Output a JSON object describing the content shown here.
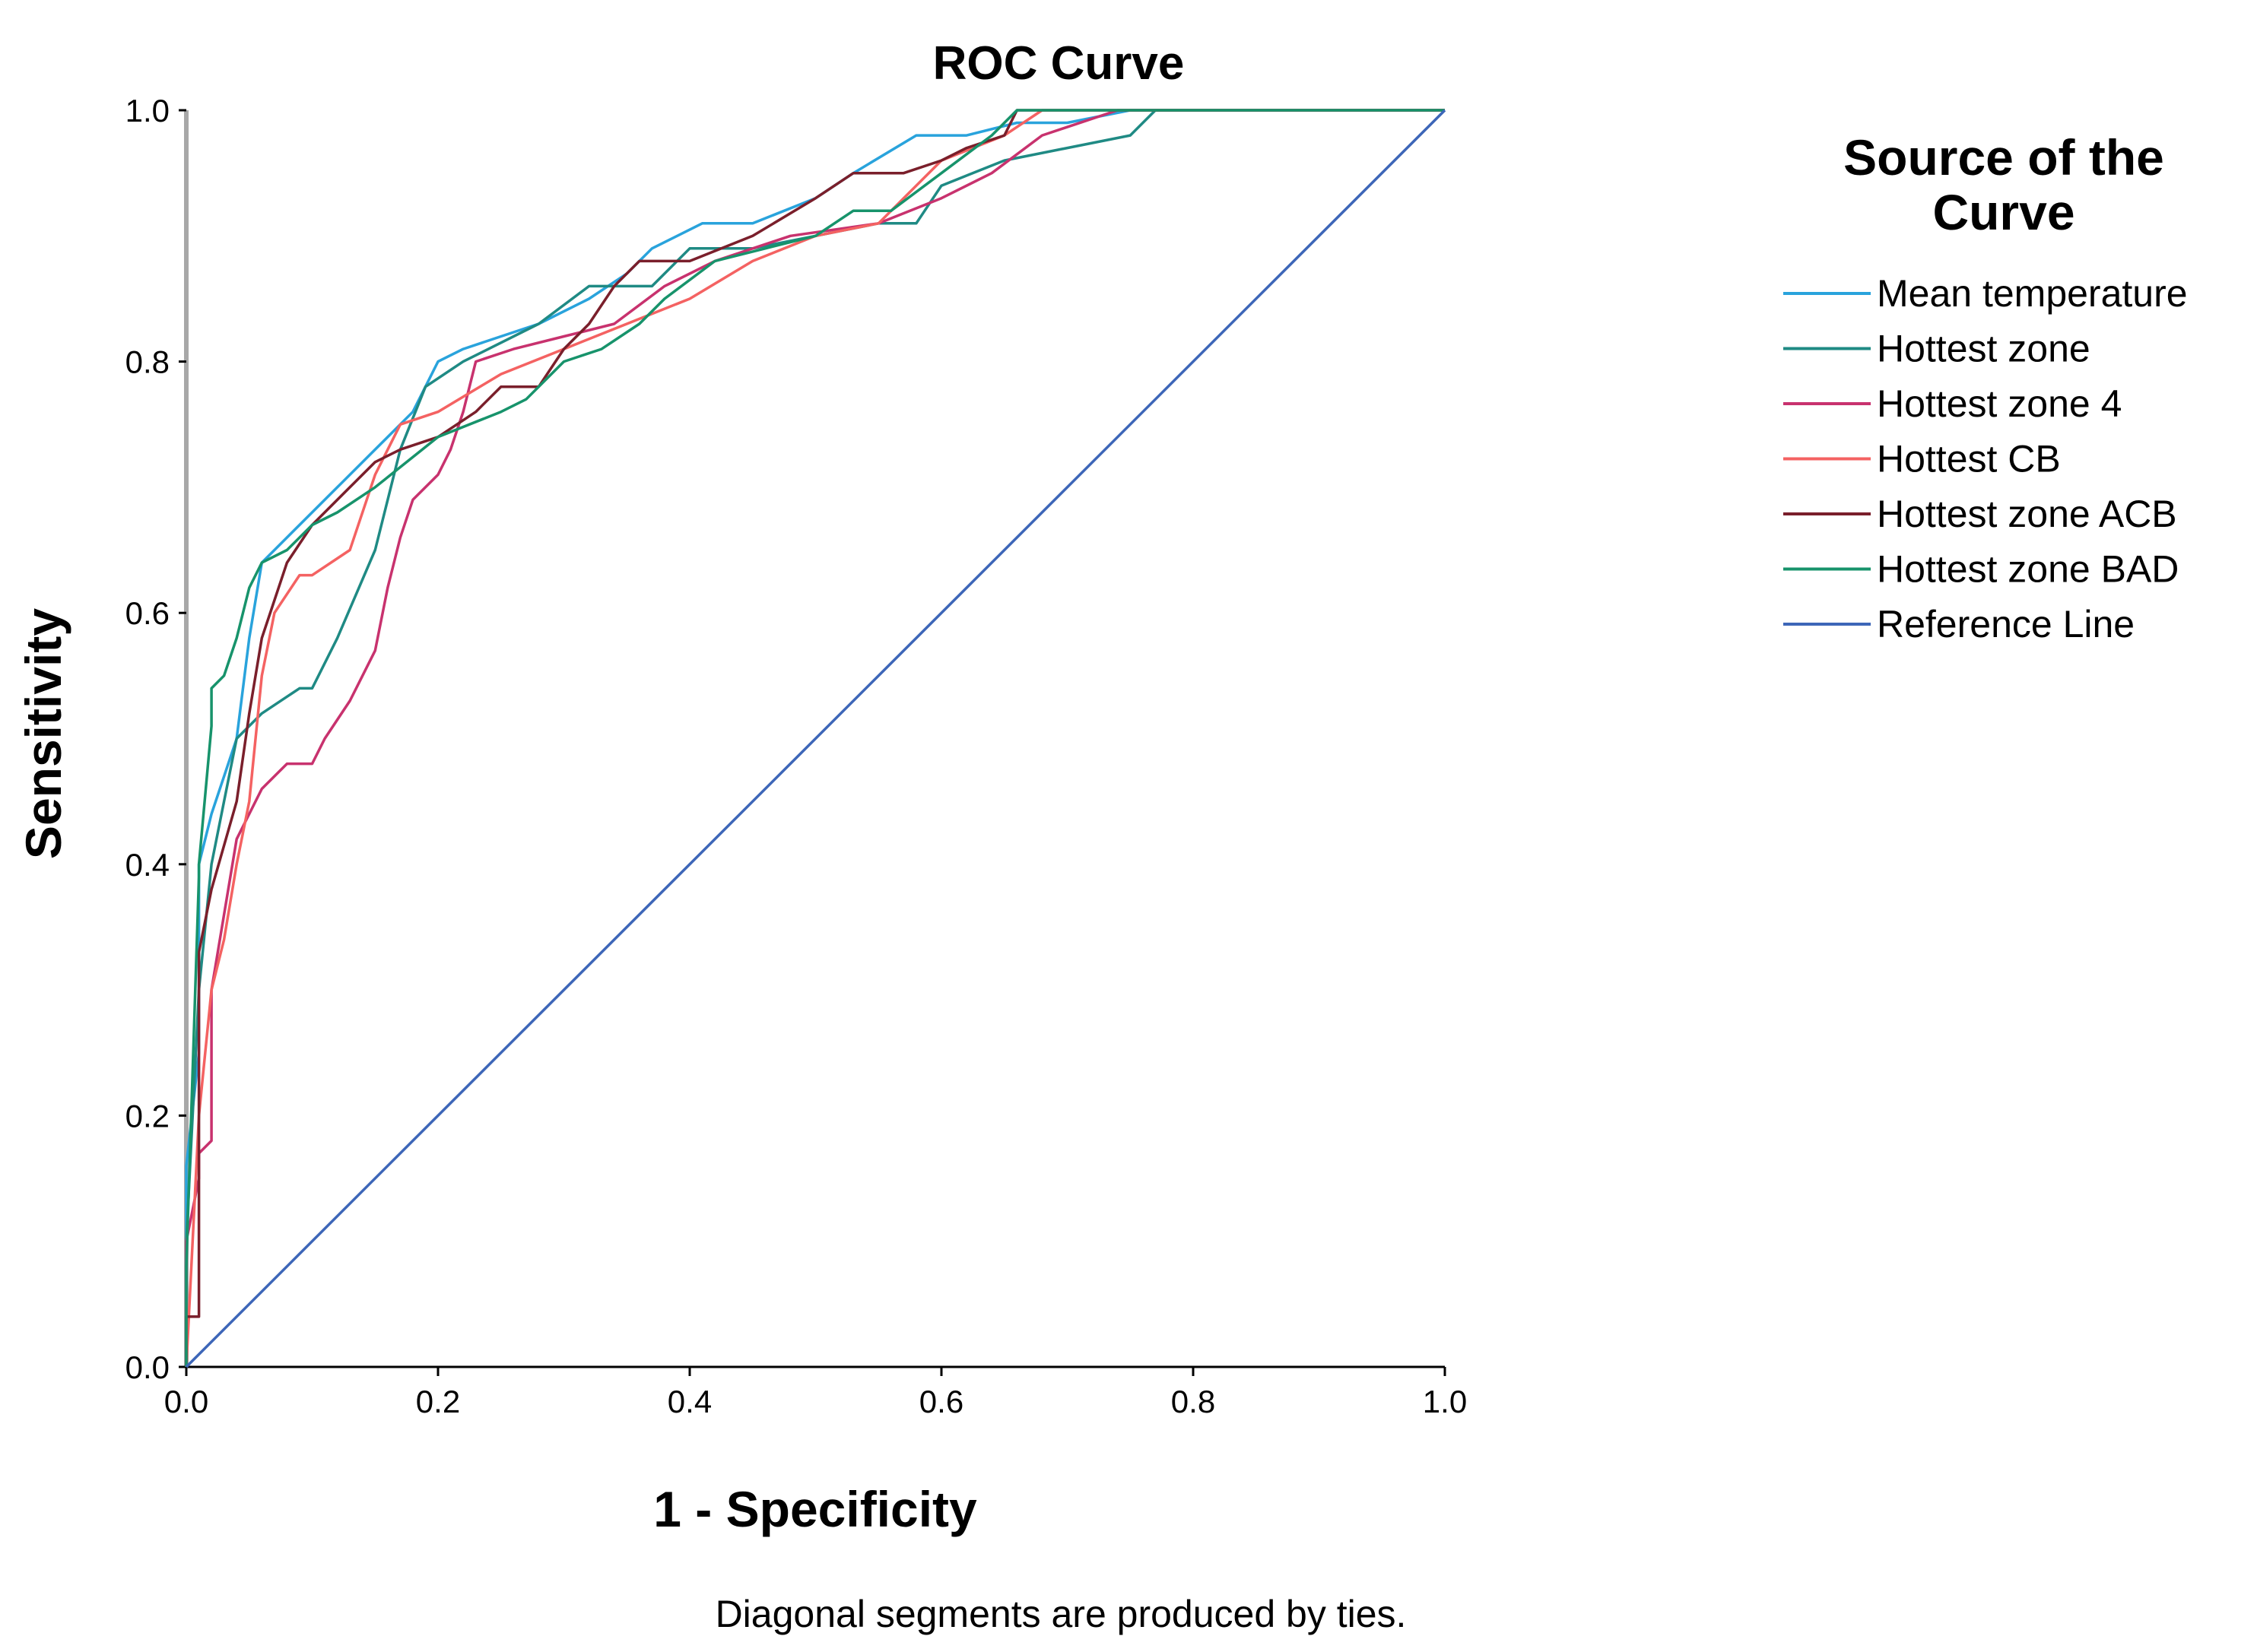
{
  "chart_data": {
    "type": "line",
    "title": "ROC Curve",
    "xlabel": "1 - Specificity",
    "ylabel": "Sensitivity",
    "xlim": [
      0,
      1
    ],
    "ylim": [
      0,
      1
    ],
    "xticks": [
      "0.0",
      "0.2",
      "0.4",
      "0.6",
      "0.8",
      "1.0"
    ],
    "yticks": [
      "0.0",
      "0.2",
      "0.4",
      "0.6",
      "0.8",
      "1.0"
    ],
    "grid": false,
    "legend": {
      "title": "Source of the Curve",
      "title_lines": [
        "Source of the",
        "Curve"
      ],
      "placement": "right"
    },
    "footnote": "Diagonal segments are produced by ties.",
    "series": [
      {
        "name": "Mean temperature",
        "color": "#29a3dc",
        "x": [
          0,
          0,
          0.01,
          0.01,
          0.02,
          0.04,
          0.05,
          0.06,
          0.08,
          0.12,
          0.15,
          0.18,
          0.2,
          0.22,
          0.25,
          0.28,
          0.32,
          0.35,
          0.37,
          0.41,
          0.45,
          0.5,
          0.53,
          0.58,
          0.62,
          0.66,
          0.7,
          0.75,
          1.0
        ],
        "y": [
          0,
          0.16,
          0.25,
          0.4,
          0.44,
          0.5,
          0.58,
          0.64,
          0.66,
          0.7,
          0.73,
          0.76,
          0.8,
          0.81,
          0.82,
          0.83,
          0.85,
          0.87,
          0.89,
          0.91,
          0.91,
          0.93,
          0.95,
          0.98,
          0.98,
          0.99,
          0.99,
          1.0,
          1.0
        ]
      },
      {
        "name": "Hottest zone",
        "color": "#1f8a84",
        "x": [
          0,
          0,
          0.01,
          0.02,
          0.03,
          0.04,
          0.06,
          0.09,
          0.1,
          0.12,
          0.15,
          0.17,
          0.19,
          0.22,
          0.28,
          0.32,
          0.37,
          0.4,
          0.45,
          0.5,
          0.55,
          0.58,
          0.6,
          0.65,
          0.75,
          0.77,
          1.0
        ],
        "y": [
          0,
          0.1,
          0.3,
          0.4,
          0.45,
          0.5,
          0.52,
          0.54,
          0.54,
          0.58,
          0.65,
          0.73,
          0.78,
          0.8,
          0.83,
          0.86,
          0.86,
          0.89,
          0.89,
          0.9,
          0.91,
          0.91,
          0.94,
          0.96,
          0.98,
          1.0,
          1.0
        ]
      },
      {
        "name": "Hottest zone 4",
        "color": "#c8326e",
        "x": [
          0,
          0,
          0.01,
          0.01,
          0.02,
          0.02,
          0.04,
          0.06,
          0.08,
          0.1,
          0.11,
          0.13,
          0.15,
          0.16,
          0.17,
          0.18,
          0.2,
          0.21,
          0.22,
          0.23,
          0.26,
          0.3,
          0.34,
          0.38,
          0.42,
          0.48,
          0.55,
          0.6,
          0.64,
          0.68,
          0.74,
          1.0
        ],
        "y": [
          0,
          0.1,
          0.15,
          0.17,
          0.18,
          0.3,
          0.42,
          0.46,
          0.48,
          0.48,
          0.5,
          0.53,
          0.57,
          0.62,
          0.66,
          0.69,
          0.71,
          0.73,
          0.76,
          0.8,
          0.81,
          0.82,
          0.83,
          0.86,
          0.88,
          0.9,
          0.91,
          0.93,
          0.95,
          0.98,
          1.0,
          1.0
        ]
      },
      {
        "name": "Hottest CB",
        "color": "#f46262",
        "x": [
          0,
          0.01,
          0.02,
          0.03,
          0.04,
          0.05,
          0.06,
          0.07,
          0.09,
          0.1,
          0.13,
          0.15,
          0.17,
          0.2,
          0.25,
          0.3,
          0.35,
          0.4,
          0.45,
          0.5,
          0.55,
          0.58,
          0.6,
          0.65,
          0.68,
          1.0
        ],
        "y": [
          0,
          0.2,
          0.3,
          0.34,
          0.4,
          0.45,
          0.55,
          0.6,
          0.63,
          0.63,
          0.65,
          0.71,
          0.75,
          0.76,
          0.79,
          0.81,
          0.83,
          0.85,
          0.88,
          0.9,
          0.91,
          0.94,
          0.96,
          0.98,
          1.0,
          1.0
        ]
      },
      {
        "name": "Hottest zone ACB",
        "color": "#7a1f2b",
        "x": [
          0,
          0,
          0.01,
          0.01,
          0.02,
          0.04,
          0.05,
          0.06,
          0.08,
          0.1,
          0.13,
          0.15,
          0.17,
          0.2,
          0.23,
          0.25,
          0.28,
          0.3,
          0.32,
          0.34,
          0.36,
          0.4,
          0.45,
          0.5,
          0.53,
          0.57,
          0.6,
          0.62,
          0.65,
          0.66,
          1.0
        ],
        "y": [
          0,
          0.04,
          0.04,
          0.33,
          0.38,
          0.45,
          0.52,
          0.58,
          0.64,
          0.67,
          0.7,
          0.72,
          0.73,
          0.74,
          0.76,
          0.78,
          0.78,
          0.81,
          0.83,
          0.86,
          0.88,
          0.88,
          0.9,
          0.93,
          0.95,
          0.95,
          0.96,
          0.97,
          0.98,
          1.0,
          1.0
        ]
      },
      {
        "name": "Hottest zone BAD",
        "color": "#17936b",
        "x": [
          0,
          0,
          0.01,
          0.01,
          0.02,
          0.02,
          0.03,
          0.04,
          0.05,
          0.06,
          0.08,
          0.1,
          0.12,
          0.15,
          0.2,
          0.25,
          0.27,
          0.3,
          0.33,
          0.36,
          0.38,
          0.42,
          0.46,
          0.5,
          0.53,
          0.56,
          0.6,
          0.64,
          0.66,
          1.0
        ],
        "y": [
          0,
          0.08,
          0.39,
          0.4,
          0.51,
          0.54,
          0.55,
          0.58,
          0.62,
          0.64,
          0.65,
          0.67,
          0.68,
          0.7,
          0.74,
          0.76,
          0.77,
          0.8,
          0.81,
          0.83,
          0.85,
          0.88,
          0.89,
          0.9,
          0.92,
          0.92,
          0.95,
          0.98,
          1.0,
          1.0
        ]
      },
      {
        "name": "Reference Line",
        "color": "#3d66b8",
        "x": [
          0,
          1
        ],
        "y": [
          0,
          1
        ]
      }
    ]
  }
}
